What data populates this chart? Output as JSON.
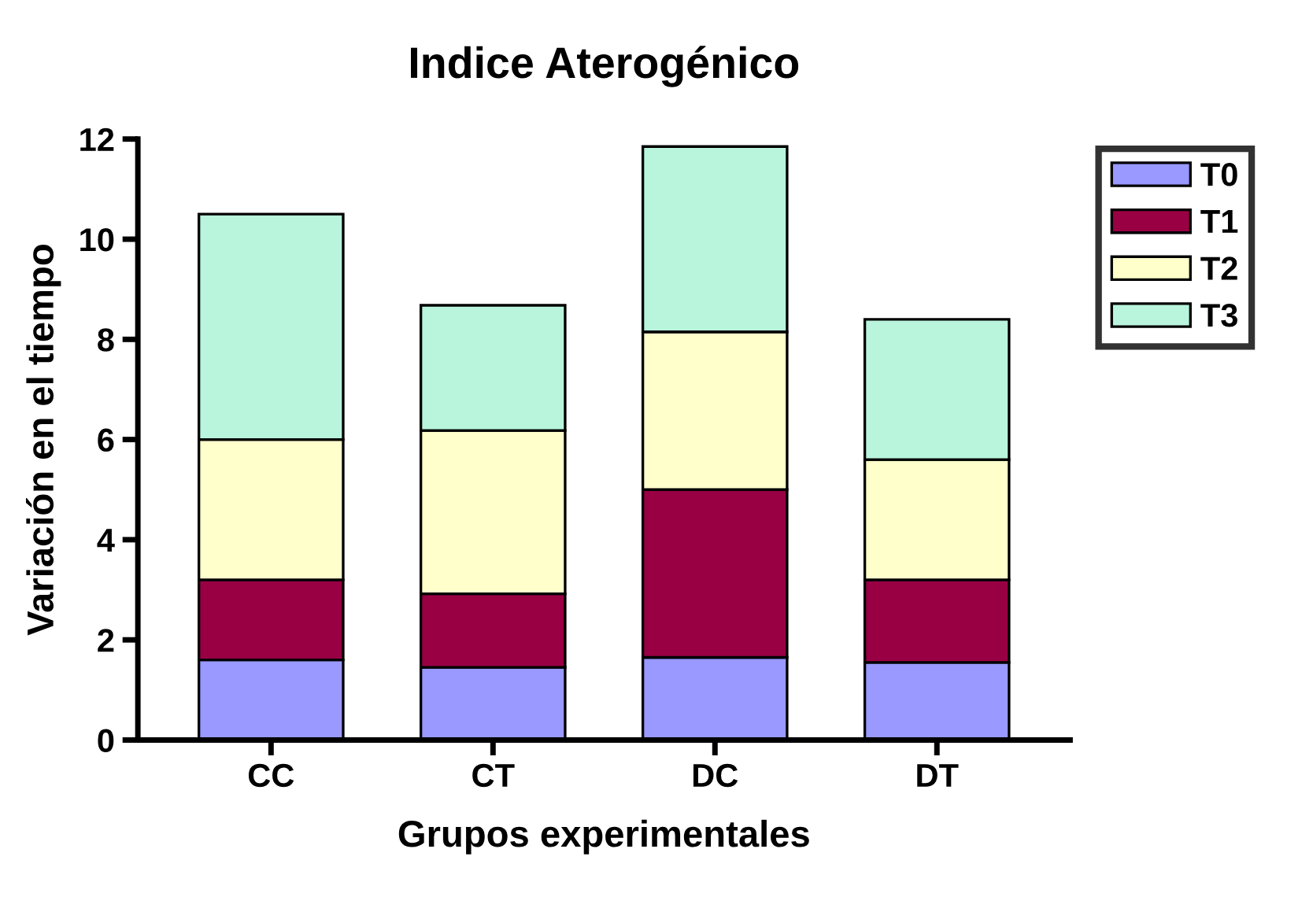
{
  "chart_data": {
    "type": "bar",
    "title": "Indice Aterogénico",
    "xlabel": "Grupos experimentales",
    "ylabel": "Variación en el tiempo",
    "categories": [
      "CC",
      "CT",
      "DC",
      "DT"
    ],
    "stacked": true,
    "ylim": [
      0,
      12
    ],
    "yticks": [
      0,
      2,
      4,
      6,
      8,
      10,
      12
    ],
    "grid": false,
    "legend": "top right",
    "series": [
      {
        "name": "T0",
        "color": "#9999ff",
        "values": [
          1.6,
          1.45,
          1.65,
          1.55
        ]
      },
      {
        "name": "T1",
        "color": "#990044",
        "values": [
          1.6,
          1.47,
          3.35,
          1.65
        ]
      },
      {
        "name": "T2",
        "color": "#ffffcc",
        "values": [
          2.8,
          3.26,
          3.15,
          2.4
        ]
      },
      {
        "name": "T3",
        "color": "#b8f5dc",
        "values": [
          4.5,
          2.5,
          3.7,
          2.8
        ]
      }
    ]
  }
}
